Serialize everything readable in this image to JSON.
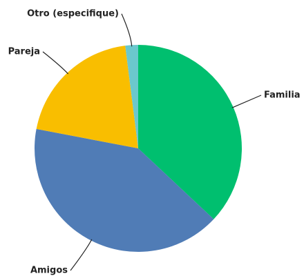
{
  "chart_data": {
    "type": "pie",
    "categories": [
      "Familia",
      "Amigos",
      "Pareja",
      "Otro (especifique)"
    ],
    "values": [
      37,
      41,
      20,
      2
    ],
    "colors": [
      "#00bf6f",
      "#507cb6",
      "#f9be00",
      "#6bc8cd"
    ]
  }
}
